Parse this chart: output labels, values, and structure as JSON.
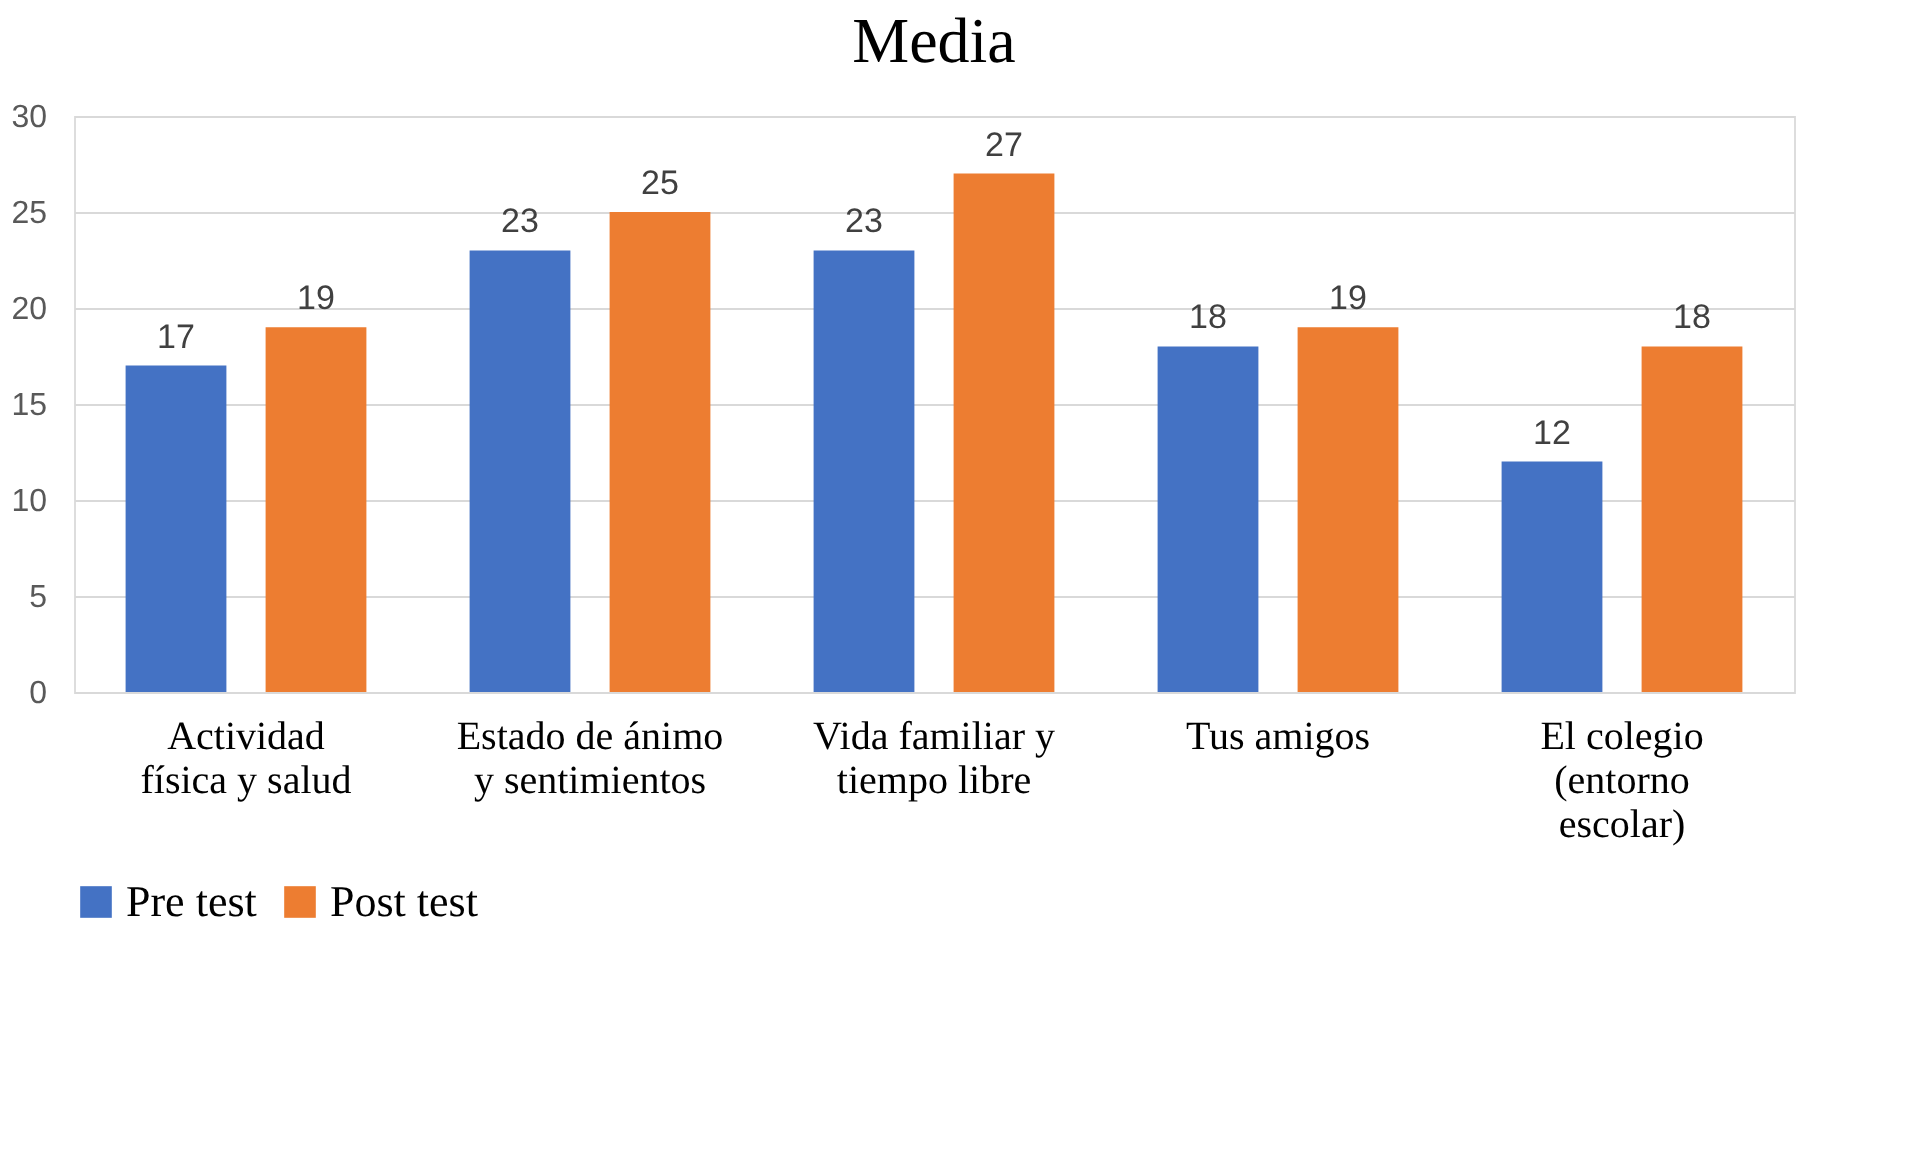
{
  "chart_data": {
    "type": "bar",
    "title": "Media",
    "categories": [
      "Actividad física y salud",
      "Estado de ánimo y sentimientos",
      "Vida familiar y tiempo libre",
      "Tus amigos",
      "El colegio (entorno escolar)"
    ],
    "series": [
      {
        "name": "Pre test",
        "color": "#4472c4",
        "values": [
          17,
          23,
          23,
          18,
          12
        ]
      },
      {
        "name": "Post test",
        "color": "#ed7d31",
        "values": [
          19,
          25,
          27,
          19,
          18
        ]
      }
    ],
    "ylim": [
      0,
      30
    ],
    "yticks": [
      0,
      5,
      10,
      15,
      20,
      25,
      30
    ],
    "grid": "y",
    "legend": "bottom",
    "data_labels": true
  }
}
